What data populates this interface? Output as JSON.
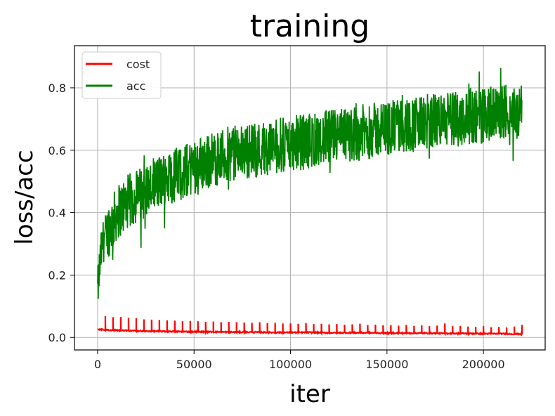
{
  "chart_data": {
    "type": "line",
    "title": "training",
    "xlabel": "iter",
    "ylabel": "loss/acc",
    "xlim": [
      -12000,
      232000
    ],
    "ylim": [
      -0.04,
      0.935
    ],
    "x_ticks": [
      0,
      50000,
      100000,
      150000,
      200000
    ],
    "x_tick_labels": [
      "0",
      "50000",
      "100000",
      "150000",
      "200000"
    ],
    "y_ticks": [
      0.0,
      0.2,
      0.4,
      0.6,
      0.8
    ],
    "y_tick_labels": [
      "0.0",
      "0.2",
      "0.4",
      "0.6",
      "0.8"
    ],
    "grid": true,
    "legend_position": "top-left",
    "series": [
      {
        "name": "cost",
        "color": "#ff0000",
        "x": [
          0,
          1000,
          2000,
          3000,
          4000,
          5000,
          8000,
          10000,
          12000,
          15000,
          20000,
          25000,
          30000,
          40000,
          50000,
          60000,
          70000,
          80000,
          90000,
          100000,
          110000,
          120000,
          130000,
          140000,
          150000,
          160000,
          170000,
          180000,
          190000,
          200000,
          210000,
          215000,
          220000
        ],
        "y": [
          0.026,
          0.026,
          0.025,
          0.025,
          0.024,
          0.024,
          0.023,
          0.023,
          0.022,
          0.022,
          0.021,
          0.02,
          0.02,
          0.019,
          0.018,
          0.018,
          0.017,
          0.017,
          0.016,
          0.016,
          0.016,
          0.015,
          0.015,
          0.015,
          0.014,
          0.014,
          0.014,
          0.013,
          0.013,
          0.012,
          0.012,
          0.011,
          0.011
        ],
        "spike_x": [
          4000,
          8000,
          12000,
          16000,
          20000,
          24000,
          28000,
          32000,
          36000,
          40000,
          44000,
          48000,
          52000,
          56000,
          60000,
          64000,
          68000,
          72000,
          76000,
          80000,
          84000,
          88000,
          92000,
          96000,
          100000,
          104000,
          108000,
          112000,
          116000,
          120000,
          124000,
          128000,
          132000,
          136000,
          140000,
          144000,
          148000,
          152000,
          156000,
          160000,
          164000,
          168000,
          172000,
          176000,
          180000,
          184000,
          188000,
          192000,
          196000,
          200000,
          204000,
          208000,
          212000,
          216000,
          220000
        ],
        "spike_y": [
          0.068,
          0.065,
          0.066,
          0.063,
          0.062,
          0.058,
          0.057,
          0.056,
          0.055,
          0.054,
          0.052,
          0.053,
          0.052,
          0.05,
          0.051,
          0.049,
          0.05,
          0.049,
          0.048,
          0.047,
          0.049,
          0.046,
          0.047,
          0.045,
          0.045,
          0.044,
          0.046,
          0.043,
          0.044,
          0.042,
          0.043,
          0.041,
          0.042,
          0.044,
          0.04,
          0.041,
          0.039,
          0.04,
          0.038,
          0.04,
          0.037,
          0.039,
          0.036,
          0.038,
          0.045,
          0.036,
          0.037,
          0.035,
          0.034,
          0.036,
          0.033,
          0.034,
          0.032,
          0.035,
          0.04
        ]
      },
      {
        "name": "acc",
        "color": "#008000",
        "x": [
          0,
          1000,
          2000,
          3000,
          5000,
          8000,
          10000,
          15000,
          20000,
          25000,
          30000,
          35000,
          40000,
          45000,
          50000,
          55000,
          60000,
          65000,
          70000,
          75000,
          80000,
          85000,
          90000,
          95000,
          100000,
          105000,
          110000,
          115000,
          120000,
          125000,
          130000,
          135000,
          140000,
          145000,
          150000,
          155000,
          160000,
          165000,
          170000,
          175000,
          180000,
          185000,
          190000,
          195000,
          200000,
          205000,
          210000,
          215000,
          220000
        ],
        "y": [
          0.15,
          0.22,
          0.28,
          0.31,
          0.34,
          0.37,
          0.4,
          0.43,
          0.45,
          0.47,
          0.49,
          0.51,
          0.52,
          0.53,
          0.55,
          0.56,
          0.57,
          0.58,
          0.59,
          0.595,
          0.6,
          0.605,
          0.61,
          0.615,
          0.62,
          0.625,
          0.63,
          0.635,
          0.64,
          0.645,
          0.65,
          0.655,
          0.66,
          0.665,
          0.67,
          0.675,
          0.68,
          0.685,
          0.69,
          0.695,
          0.7,
          0.7,
          0.705,
          0.71,
          0.71,
          0.715,
          0.72,
          0.72,
          0.72
        ],
        "noise_amplitude": 0.09,
        "min": 0.12,
        "max": 0.91
      }
    ]
  }
}
